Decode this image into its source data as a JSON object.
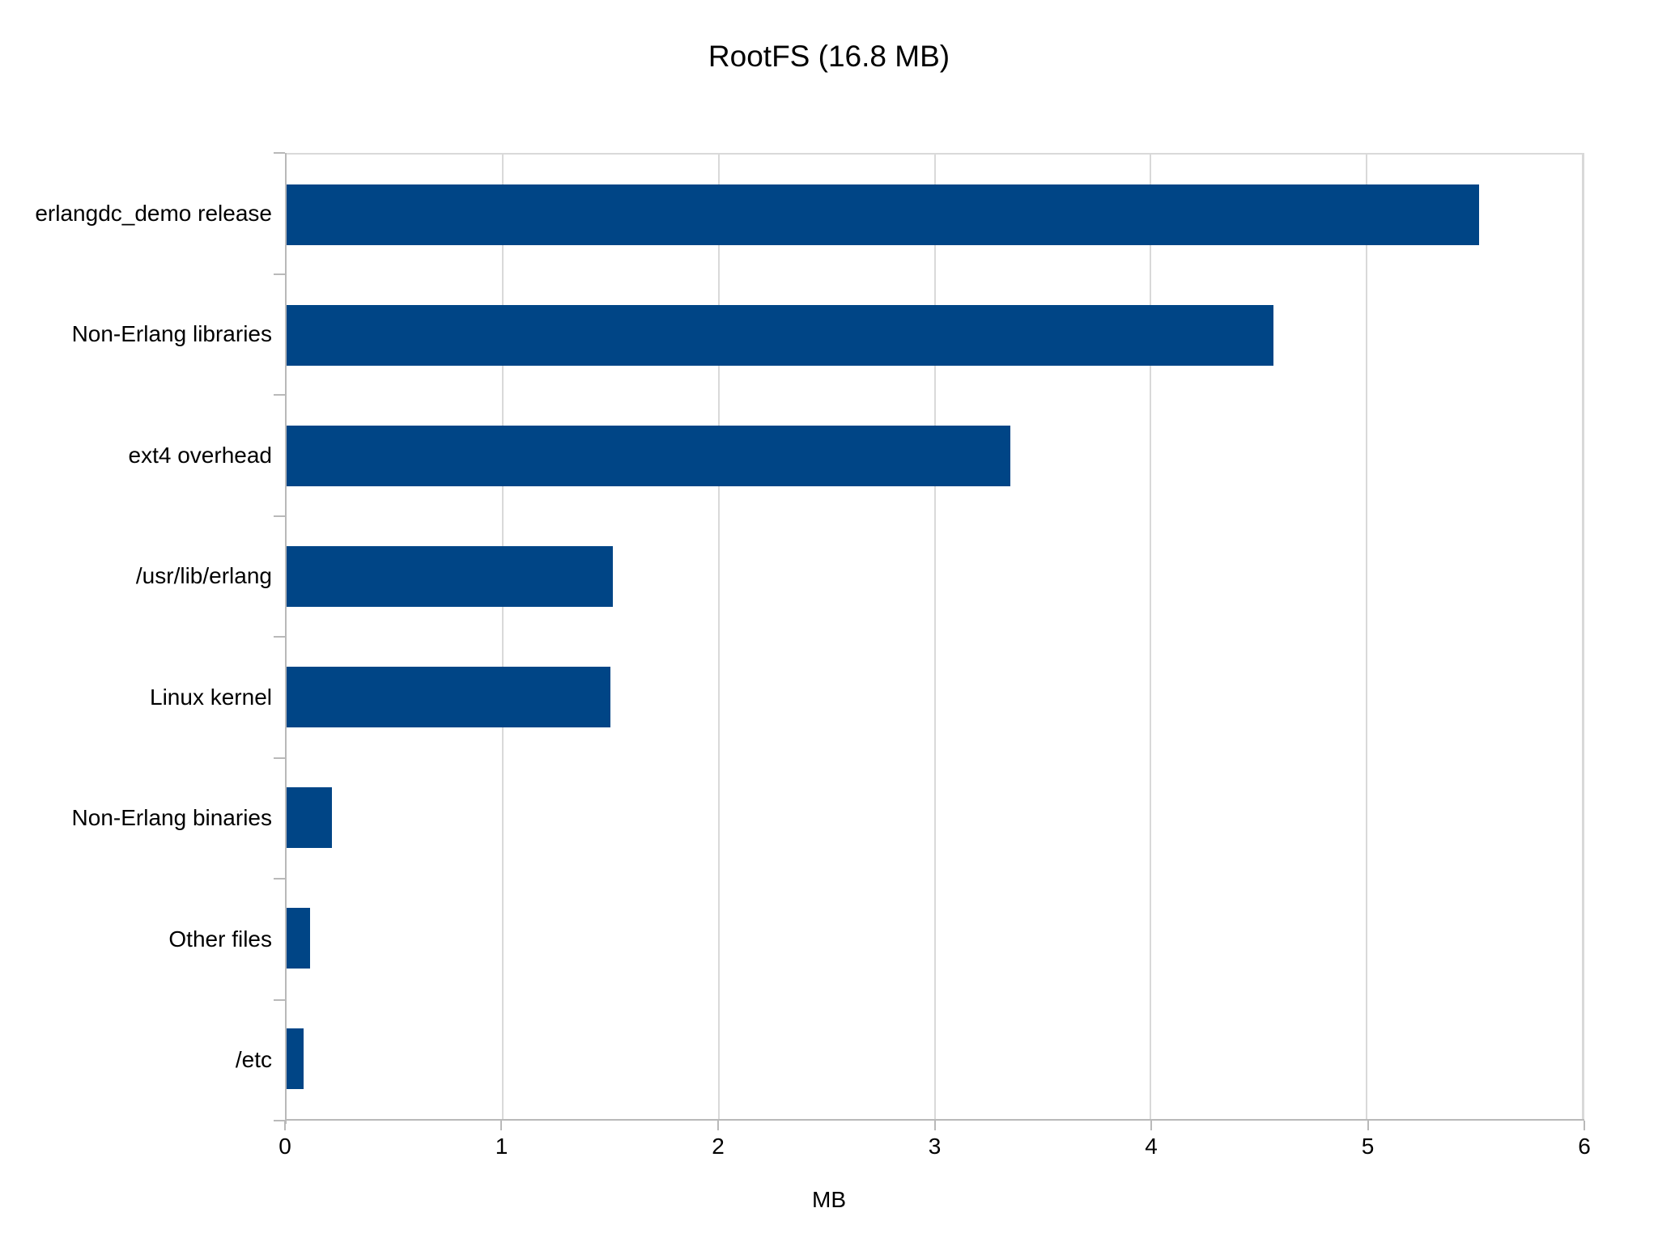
{
  "page": {
    "background": "#ffffff",
    "text_color": "#000000"
  },
  "chart_data": {
    "type": "bar",
    "orientation": "horizontal",
    "title": "RootFS (16.8 MB)",
    "categories": [
      "erlangdc_demo release",
      "Non-Erlang libraries",
      "ext4 overhead",
      "/usr/lib/erlang",
      "Linux kernel",
      "Non-Erlang binaries",
      "Other files",
      "/etc"
    ],
    "values": [
      5.52,
      4.57,
      3.35,
      1.51,
      1.5,
      0.21,
      0.11,
      0.08
    ],
    "xlabel": "MB",
    "xlim": [
      0,
      6
    ],
    "xticks": [
      0,
      1,
      2,
      3,
      4,
      5,
      6
    ],
    "bar_color": "#004586",
    "gridline_color": "#d9d9d9",
    "axis_color": "#b9b9b9",
    "grid": "vertical",
    "legend": "none"
  }
}
